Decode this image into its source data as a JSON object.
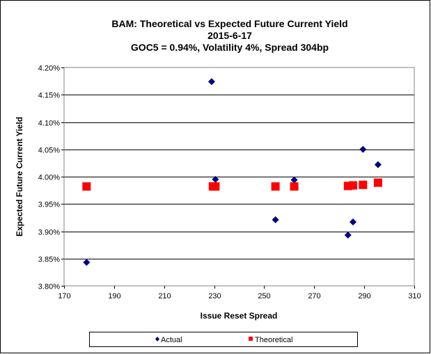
{
  "chart_data": {
    "type": "scatter",
    "title": [
      "BAM: Theoretical vs Expected Future Current Yield",
      "2015-6-17",
      "GOC5 = 0.94%, Volatility 4%, Spread 304bp"
    ],
    "xlabel": "Issue Reset Spread",
    "ylabel": "Expected Future Current Yield",
    "xlim": [
      170,
      310
    ],
    "ylim": [
      3.8,
      4.2
    ],
    "xticks": [
      "170",
      "190",
      "210",
      "230",
      "250",
      "270",
      "290",
      "310"
    ],
    "xtick_values": [
      170,
      190,
      210,
      230,
      250,
      270,
      290,
      310
    ],
    "yticks": [
      "3.80%",
      "3.85%",
      "3.90%",
      "3.95%",
      "4.00%",
      "4.05%",
      "4.10%",
      "4.15%",
      "4.20%"
    ],
    "ytick_values": [
      3.8,
      3.85,
      3.9,
      3.95,
      4.0,
      4.05,
      4.1,
      4.15,
      4.2
    ],
    "grid": "horizontal",
    "legend_position": "bottom",
    "series": [
      {
        "name": "Actual",
        "color": "#000080",
        "marker": "diamond",
        "points": [
          [
            179,
            3.843
          ],
          [
            229,
            4.174
          ],
          [
            230.5,
            3.995
          ],
          [
            254.5,
            3.921
          ],
          [
            262,
            3.994
          ],
          [
            283.5,
            3.893
          ],
          [
            285.5,
            3.917
          ],
          [
            289.5,
            4.05
          ],
          [
            295.5,
            4.022
          ]
        ]
      },
      {
        "name": "Theoretical",
        "color": "#ff0000",
        "marker": "square",
        "points": [
          [
            179,
            3.982
          ],
          [
            229.5,
            3.982
          ],
          [
            230.5,
            3.982
          ],
          [
            254.5,
            3.982
          ],
          [
            262,
            3.982
          ],
          [
            283.5,
            3.983
          ],
          [
            285.5,
            3.984
          ],
          [
            289.5,
            3.985
          ],
          [
            295.5,
            3.989
          ]
        ]
      }
    ]
  }
}
